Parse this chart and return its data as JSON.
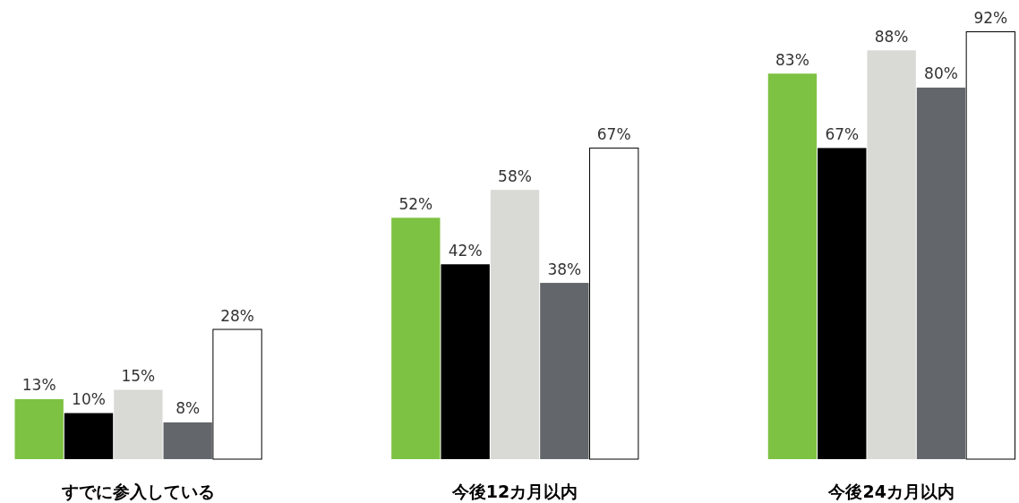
{
  "chart_data": {
    "type": "bar",
    "categories": [
      "すでに参入している",
      "今後12カ月以内",
      "今後24カ月以内"
    ],
    "series": [
      {
        "color": "#7dc242",
        "values": [
          13,
          52,
          83
        ],
        "value_labels": [
          "13%",
          "52%",
          "83%"
        ]
      },
      {
        "color": "#000000",
        "values": [
          10,
          42,
          67
        ],
        "value_labels": [
          "10%",
          "42%",
          "67%"
        ]
      },
      {
        "color": "#d9d9d6",
        "values": [
          15,
          58,
          88
        ],
        "value_labels": [
          "15%",
          "58%",
          "88%"
        ]
      },
      {
        "color": "#63666a",
        "values": [
          8,
          38,
          80
        ],
        "value_labels": [
          "8%",
          "38%",
          "80%"
        ]
      },
      {
        "color": "#ffffff",
        "values": [
          28,
          67,
          92
        ],
        "value_labels": [
          "28%",
          "67%",
          "92%"
        ]
      }
    ]
  }
}
